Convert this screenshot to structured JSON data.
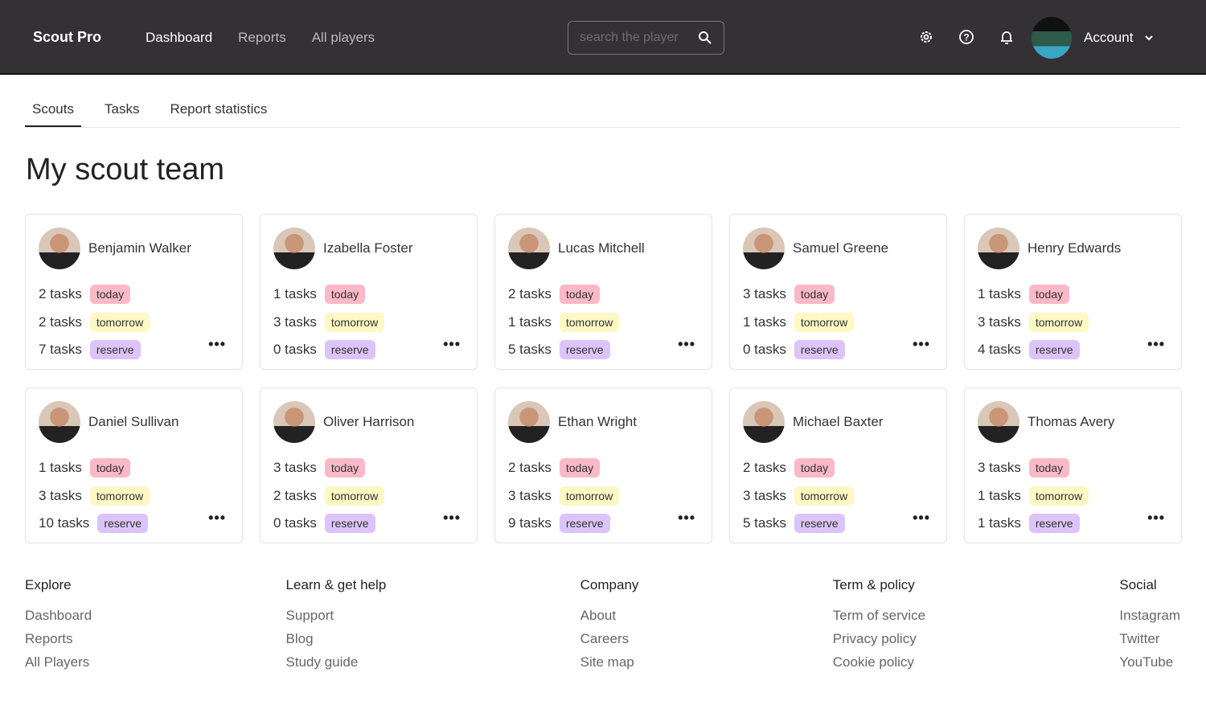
{
  "header": {
    "logo": "Scout Pro",
    "nav": [
      "Dashboard",
      "Reports",
      "All players"
    ],
    "search_placeholder": "search the player",
    "account": "Account"
  },
  "tabs": [
    "Scouts",
    "Tasks",
    "Report statistics"
  ],
  "title": "My scout team",
  "badges": {
    "today": "today",
    "tomorrow": "tomorrow",
    "reserve": "reserve"
  },
  "scouts": [
    {
      "name": "Benjamin Walker",
      "today": "2 tasks",
      "tomorrow": "2 tasks",
      "reserve": "7 tasks"
    },
    {
      "name": "Izabella Foster",
      "today": "1 tasks",
      "tomorrow": "3 tasks",
      "reserve": "0 tasks"
    },
    {
      "name": "Lucas Mitchell",
      "today": "2 tasks",
      "tomorrow": "1 tasks",
      "reserve": "5 tasks"
    },
    {
      "name": "Samuel Greene",
      "today": "3 tasks",
      "tomorrow": "1 tasks",
      "reserve": "0 tasks"
    },
    {
      "name": "Henry Edwards",
      "today": "1 tasks",
      "tomorrow": "3 tasks",
      "reserve": "4 tasks"
    },
    {
      "name": "Daniel Sullivan",
      "today": "1 tasks",
      "tomorrow": "3 tasks",
      "reserve": "10 tasks"
    },
    {
      "name": "Oliver Harrison",
      "today": "3 tasks",
      "tomorrow": "2 tasks",
      "reserve": "0 tasks"
    },
    {
      "name": "Ethan Wright",
      "today": "2 tasks",
      "tomorrow": "3 tasks",
      "reserve": "9 tasks"
    },
    {
      "name": "Michael Baxter",
      "today": "2 tasks",
      "tomorrow": "3 tasks",
      "reserve": "5 tasks"
    },
    {
      "name": "Thomas Avery",
      "today": "3 tasks",
      "tomorrow": "1 tasks",
      "reserve": "1 tasks"
    }
  ],
  "footer": [
    {
      "title": "Explore",
      "links": [
        "Dashboard",
        "Reports",
        "All Players"
      ]
    },
    {
      "title": "Learn & get help",
      "links": [
        "Support",
        "Blog",
        "Study guide"
      ]
    },
    {
      "title": "Company",
      "links": [
        "About",
        "Careers",
        "Site map"
      ]
    },
    {
      "title": "Term & policy",
      "links": [
        "Term of service",
        "Privacy policy",
        "Cookie policy"
      ]
    },
    {
      "title": "Social",
      "links": [
        "Instagram",
        "Twitter",
        "YouTube"
      ]
    }
  ]
}
